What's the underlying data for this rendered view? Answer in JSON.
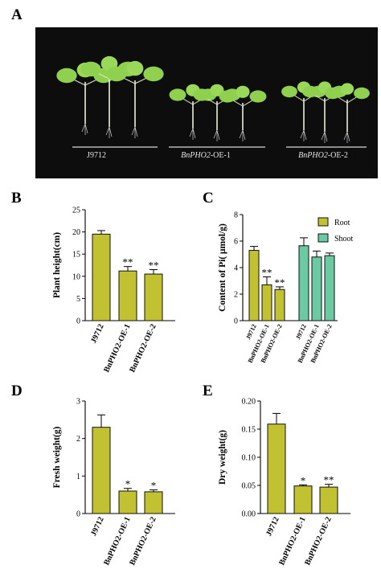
{
  "panels": {
    "a": "A",
    "b": "B",
    "c": "C",
    "d": "D",
    "e": "E"
  },
  "photo": {
    "labels": [
      {
        "italic": "",
        "plain": "J9712"
      },
      {
        "italic": "BnPHO2",
        "plain": "-OE-1"
      },
      {
        "italic": "BnPHO2",
        "plain": "-OE-2"
      }
    ]
  },
  "colors": {
    "bar_olive": "#c2c132",
    "bar_teal": "#6ccaa2",
    "photo_bg": "#0d0d0d",
    "leaf": "#8fd14f"
  },
  "chart_data": [
    {
      "id": "B",
      "type": "bar",
      "categories": [
        "J9712",
        "BnPHO2-OE-1",
        "BnPHO2-OE-2"
      ],
      "values": [
        19.5,
        11.2,
        10.5
      ],
      "errors": [
        0.8,
        1.0,
        1.0
      ],
      "significance": [
        "",
        "**",
        "**"
      ],
      "ylabel": "Plant height(cm)",
      "ylim": [
        0,
        25
      ],
      "yticks": [
        "0",
        "5",
        "10",
        "15",
        "20",
        "25"
      ],
      "color": "#c2c132"
    },
    {
      "id": "C",
      "type": "bar",
      "categories": [
        "J9712",
        "BnPHO2-OE-1",
        "BnPHO2-OE-2"
      ],
      "series": [
        {
          "name": "Root",
          "values": [
            5.3,
            2.7,
            2.35
          ],
          "errors": [
            0.3,
            0.6,
            0.2
          ],
          "significance": [
            "",
            "**",
            "**"
          ],
          "color": "#c2c132"
        },
        {
          "name": "Shoot",
          "values": [
            5.65,
            4.8,
            4.9
          ],
          "errors": [
            0.6,
            0.45,
            0.2
          ],
          "significance": [
            "",
            "",
            ""
          ],
          "color": "#6ccaa2"
        }
      ],
      "ylabel": "Content of Pi( μmol/g)",
      "ylim": [
        0,
        8
      ],
      "yticks": [
        "0",
        "2",
        "4",
        "6",
        "8"
      ],
      "legend": "top-right"
    },
    {
      "id": "D",
      "type": "bar",
      "categories": [
        "J9712",
        "BnPHO2-OE-1",
        "BnPHO2-OE-2"
      ],
      "values": [
        2.3,
        0.6,
        0.58
      ],
      "errors": [
        0.33,
        0.07,
        0.05
      ],
      "significance": [
        "",
        "*",
        "*"
      ],
      "ylabel": "Fresh weight(g)",
      "ylim": [
        0,
        3
      ],
      "yticks": [
        "0",
        "1",
        "2",
        "3"
      ],
      "color": "#c2c132"
    },
    {
      "id": "E",
      "type": "bar",
      "categories": [
        "J9712",
        "BnPHO2-OE-1",
        "BnPHO2-OE-2"
      ],
      "values": [
        0.159,
        0.049,
        0.047
      ],
      "errors": [
        0.019,
        0.002,
        0.005
      ],
      "significance": [
        "",
        "*",
        "**"
      ],
      "ylabel": "Dry weight(g)",
      "ylim": [
        0,
        0.2
      ],
      "yticks": [
        "0.00",
        "0.05",
        "0.10",
        "0.15",
        "0.20"
      ],
      "color": "#c2c132"
    }
  ]
}
